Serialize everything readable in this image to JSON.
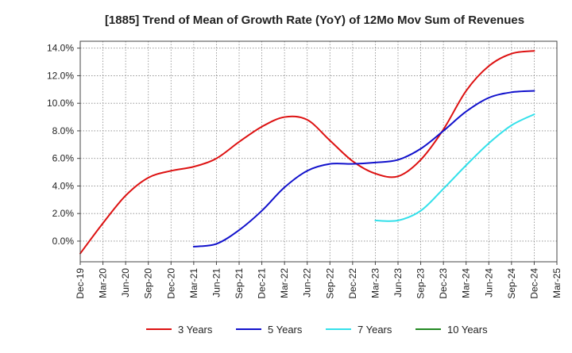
{
  "chart_data": {
    "type": "line",
    "title": "[1885]  Trend of Mean of Growth Rate (YoY) of 12Mo Mov Sum of Revenues",
    "xlabel": "",
    "ylabel": "",
    "ylim": [
      -1.5,
      14.5
    ],
    "yticks": [
      0.0,
      2.0,
      4.0,
      6.0,
      8.0,
      10.0,
      12.0,
      14.0
    ],
    "ytick_labels": [
      "0.0%",
      "2.0%",
      "4.0%",
      "6.0%",
      "8.0%",
      "10.0%",
      "12.0%",
      "14.0%"
    ],
    "x_categories": [
      "Dec-19",
      "Mar-20",
      "Jun-20",
      "Sep-20",
      "Dec-20",
      "Mar-21",
      "Jun-21",
      "Sep-21",
      "Dec-21",
      "Mar-22",
      "Jun-22",
      "Sep-22",
      "Dec-22",
      "Mar-23",
      "Jun-23",
      "Sep-23",
      "Dec-23",
      "Mar-24",
      "Jun-24",
      "Sep-24",
      "Dec-24",
      "Mar-25"
    ],
    "legend_position": "bottom",
    "grid": true,
    "series": [
      {
        "name": "3 Years",
        "color": "#dd1111",
        "values": [
          -0.9,
          1.3,
          3.3,
          4.6,
          5.1,
          5.4,
          6.0,
          7.2,
          8.3,
          9.0,
          8.8,
          7.3,
          5.8,
          4.9,
          4.7,
          5.9,
          8.1,
          10.9,
          12.7,
          13.6,
          13.8,
          null
        ]
      },
      {
        "name": "5 Years",
        "color": "#1111cc",
        "values": [
          null,
          null,
          null,
          null,
          null,
          -0.4,
          -0.2,
          0.8,
          2.2,
          3.9,
          5.1,
          5.6,
          5.6,
          5.7,
          5.9,
          6.7,
          8.0,
          9.4,
          10.4,
          10.8,
          10.9,
          null
        ]
      },
      {
        "name": "7 Years",
        "color": "#33e0ea",
        "values": [
          null,
          null,
          null,
          null,
          null,
          null,
          null,
          null,
          null,
          null,
          null,
          null,
          null,
          1.5,
          1.5,
          2.2,
          3.8,
          5.5,
          7.1,
          8.4,
          9.2,
          null
        ]
      },
      {
        "name": "10 Years",
        "color": "#228822",
        "values": [
          null,
          null,
          null,
          null,
          null,
          null,
          null,
          null,
          null,
          null,
          null,
          null,
          null,
          null,
          null,
          null,
          null,
          null,
          null,
          null,
          null,
          null
        ]
      }
    ]
  }
}
